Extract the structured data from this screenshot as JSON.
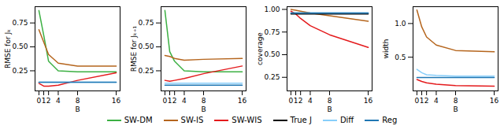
{
  "chart_data": [
    {
      "type": "line",
      "xlabel": "B",
      "ylabel": "RMSE for Jₖ",
      "x": [
        0,
        1,
        2,
        4,
        8,
        16
      ],
      "xlim": [
        -0.8,
        16.8
      ],
      "xticks": [
        0,
        1,
        2,
        4,
        8,
        16
      ],
      "ylim": [
        0.04,
        0.92
      ],
      "yticks": [
        {
          "value": 0.25,
          "label": "0.25"
        },
        {
          "value": 0.5,
          "label": "0.50"
        },
        {
          "value": 0.75,
          "label": "0.75"
        }
      ],
      "legend": "bottom",
      "series": [
        {
          "name": "SW-DM",
          "color": "#3cb043",
          "values": [
            0.88,
            0.62,
            0.35,
            0.25,
            0.24,
            0.24
          ]
        },
        {
          "name": "SW-IS",
          "color": "#b5651d",
          "values": [
            0.68,
            0.55,
            0.42,
            0.33,
            0.3,
            0.3
          ]
        },
        {
          "name": "SW-WIS",
          "color": "#e41a1c",
          "values": [
            0.12,
            0.09,
            0.09,
            0.1,
            0.15,
            0.23
          ]
        },
        {
          "name": "Diff",
          "color": "#87cefa",
          "values": [
            0.13,
            0.13,
            0.13,
            0.13,
            0.13,
            0.13
          ]
        },
        {
          "name": "Reg",
          "color": "#1f77b4",
          "values": [
            0.13,
            0.13,
            0.13,
            0.13,
            0.13,
            0.13
          ]
        }
      ]
    },
    {
      "type": "line",
      "xlabel": "B",
      "ylabel": "RMSE for Jₖ₊₁",
      "x": [
        0,
        1,
        2,
        4,
        8,
        16
      ],
      "xlim": [
        -0.8,
        16.8
      ],
      "xticks": [
        0,
        1,
        2,
        4,
        8,
        16
      ],
      "ylim": [
        0.04,
        0.92
      ],
      "yticks": [
        {
          "value": 0.25,
          "label": "0.25"
        },
        {
          "value": 0.5,
          "label": "0.50"
        },
        {
          "value": 0.75,
          "label": "0.75"
        }
      ],
      "legend": "bottom",
      "series": [
        {
          "name": "SW-DM",
          "color": "#3cb043",
          "values": [
            0.88,
            0.45,
            0.35,
            0.25,
            0.24,
            0.24
          ]
        },
        {
          "name": "SW-IS",
          "color": "#b5651d",
          "values": [
            0.41,
            0.4,
            0.38,
            0.36,
            0.37,
            0.38
          ]
        },
        {
          "name": "SW-WIS",
          "color": "#e41a1c",
          "values": [
            0.15,
            0.14,
            0.15,
            0.17,
            0.22,
            0.3
          ]
        },
        {
          "name": "Diff",
          "color": "#87cefa",
          "values": [
            0.12,
            0.12,
            0.12,
            0.12,
            0.12,
            0.12
          ]
        },
        {
          "name": "Reg",
          "color": "#1f77b4",
          "values": [
            0.1,
            0.1,
            0.1,
            0.1,
            0.1,
            0.1
          ]
        }
      ]
    },
    {
      "type": "line",
      "xlabel": "B",
      "ylabel": "coverage",
      "x": [
        0,
        1,
        2,
        4,
        8,
        16
      ],
      "xlim": [
        -0.8,
        16.8
      ],
      "xticks": [
        0,
        1,
        2,
        4,
        8,
        16
      ],
      "ylim": [
        0.1,
        1.03
      ],
      "yticks": [
        {
          "value": 0.25,
          "label": "0.25"
        },
        {
          "value": 0.5,
          "label": "0.50"
        },
        {
          "value": 0.75,
          "label": "0.75"
        },
        {
          "value": 1,
          "label": "1.00"
        }
      ],
      "legend": "bottom",
      "series": [
        {
          "name": "SW-IS",
          "color": "#b5651d",
          "values": [
            1.0,
            0.99,
            0.98,
            0.96,
            0.93,
            0.87
          ]
        },
        {
          "name": "SW-WIS",
          "color": "#e41a1c",
          "values": [
            0.98,
            0.95,
            0.9,
            0.82,
            0.72,
            0.58
          ]
        },
        {
          "name": "True J",
          "color": "#000000",
          "values": [
            0.95,
            0.95,
            0.95,
            0.95,
            0.95,
            0.95
          ]
        },
        {
          "name": "Diff",
          "color": "#87cefa",
          "values": [
            0.96,
            0.96,
            0.96,
            0.96,
            0.96,
            0.96
          ]
        },
        {
          "name": "Reg",
          "color": "#1f77b4",
          "values": [
            0.96,
            0.96,
            0.96,
            0.96,
            0.96,
            0.96
          ]
        }
      ]
    },
    {
      "type": "line",
      "xlabel": "B",
      "ylabel": "width",
      "x": [
        0,
        1,
        2,
        4,
        8,
        16
      ],
      "xlim": [
        -0.8,
        16.8
      ],
      "xticks": [
        0,
        1,
        2,
        4,
        8,
        16
      ],
      "ylim": [
        0,
        1.25
      ],
      "yticks": [
        0.5,
        {
          "value": 1,
          "label": "1.0"
        }
      ],
      "legend": "bottom",
      "series": [
        {
          "name": "SW-IS",
          "color": "#b5651d",
          "values": [
            1.2,
            0.95,
            0.8,
            0.68,
            0.6,
            0.58
          ]
        },
        {
          "name": "SW-WIS",
          "color": "#e41a1c",
          "values": [
            0.17,
            0.14,
            0.12,
            0.1,
            0.08,
            0.07
          ]
        },
        {
          "name": "Diff",
          "color": "#87cefa",
          "values": [
            0.32,
            0.27,
            0.24,
            0.23,
            0.22,
            0.22
          ]
        },
        {
          "name": "Reg",
          "color": "#1f77b4",
          "values": [
            0.2,
            0.2,
            0.2,
            0.2,
            0.2,
            0.2
          ]
        }
      ]
    }
  ]
}
